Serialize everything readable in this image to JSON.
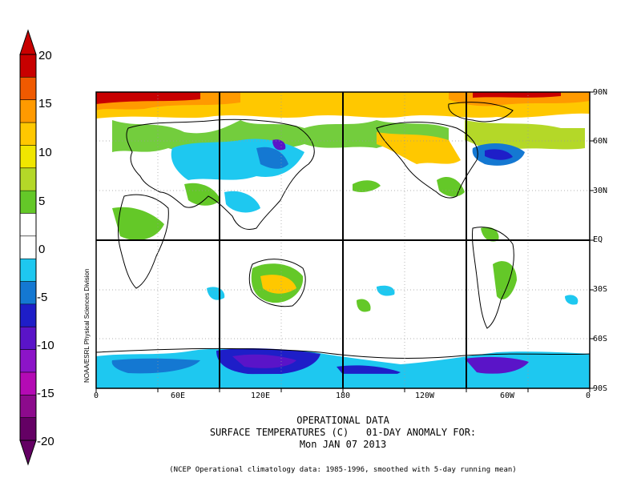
{
  "colorbar": {
    "labels": [
      "20",
      "15",
      "10",
      "5",
      "0",
      "-5",
      "-10",
      "-15",
      "-20"
    ],
    "colors": [
      "#c80000",
      "#f05a00",
      "#ff9a00",
      "#ffc800",
      "#f0e600",
      "#b4d828",
      "#64c828",
      "#ffffff",
      "#ffffff",
      "#1ec8f0",
      "#1478d2",
      "#1e1ec8",
      "#5a14c8",
      "#8c14c8",
      "#b40ab4",
      "#8c0a8c",
      "#640064"
    ]
  },
  "axes": {
    "lat_ticks": [
      "90N",
      "60N",
      "30N",
      "EQ",
      "30S",
      "60S",
      "90S"
    ],
    "lon_ticks": [
      "0",
      "60E",
      "120E",
      "180",
      "120W",
      "60W",
      "0"
    ]
  },
  "credit": "NOAA/ESRL Physical Sciences Division",
  "caption": {
    "line1": "OPERATIONAL DATA",
    "line2": "SURFACE TEMPERATURES (C)   01-DAY ANOMALY FOR:",
    "line3": "Mon JAN 07 2013"
  },
  "footnote": "(NCEP Operational climatology data: 1985-1996, smoothed with 5-day running mean)"
}
